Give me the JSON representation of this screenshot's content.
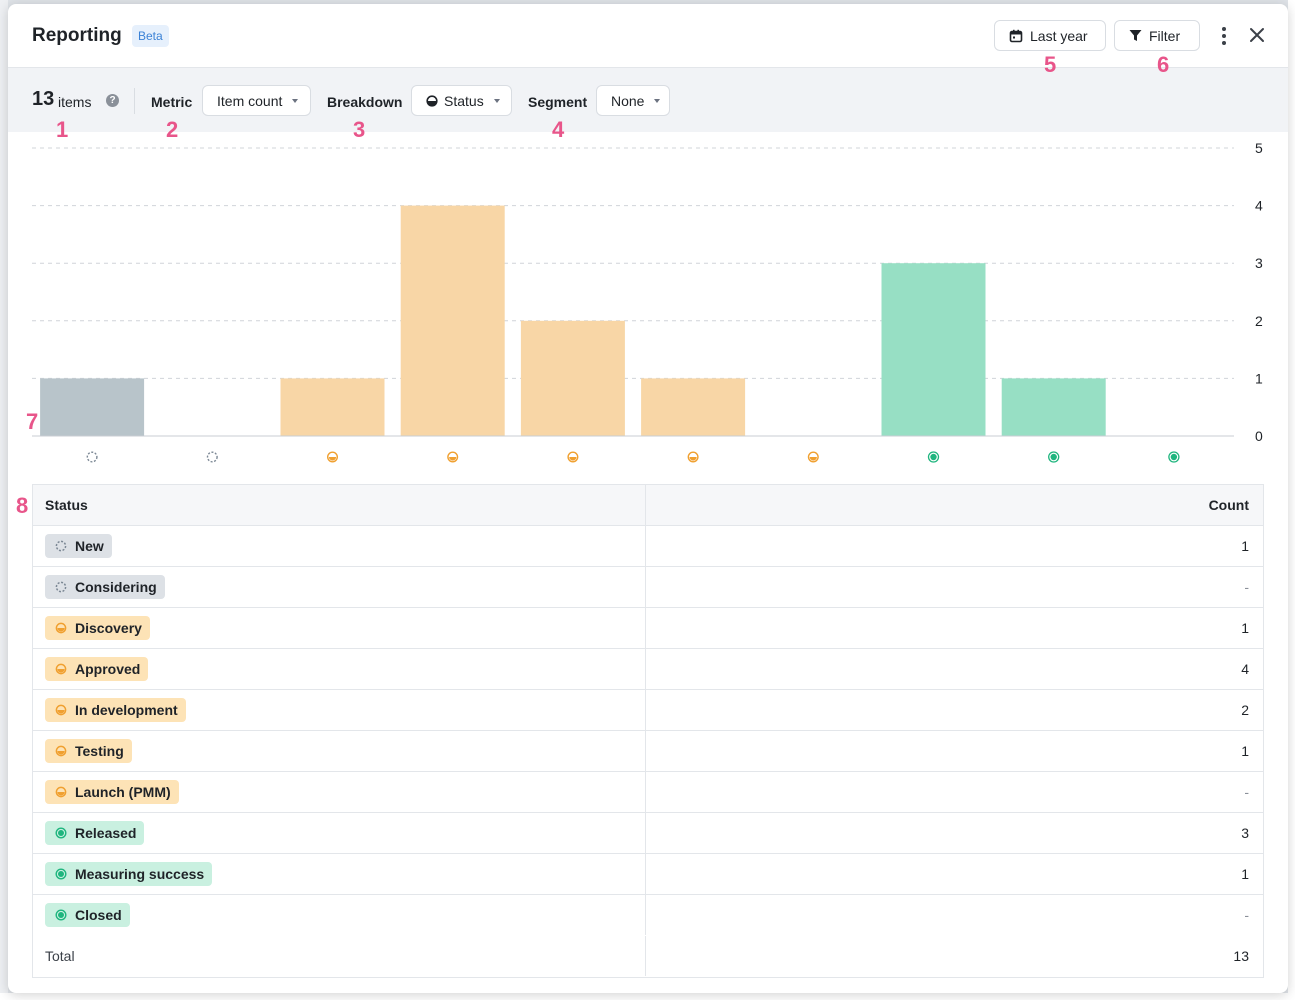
{
  "header": {
    "title": "Reporting",
    "badge": "Beta",
    "date_button": "Last year",
    "filter_button": "Filter"
  },
  "toolbar": {
    "item_count": "13",
    "item_label": "items",
    "metric_label": "Metric",
    "metric_value": "Item count",
    "breakdown_label": "Breakdown",
    "breakdown_value": "Status",
    "segment_label": "Segment",
    "segment_value": "None"
  },
  "annotations": [
    "1",
    "2",
    "3",
    "4",
    "5",
    "6",
    "7",
    "8"
  ],
  "colors": {
    "gray": "#b8c4ca",
    "orange": "#f8d6a6",
    "green": "#97dfc4",
    "icon_gray": "#7b8794",
    "icon_orange": "#f0a030",
    "icon_green": "#1fb57e"
  },
  "chart_data": {
    "type": "bar",
    "categories": [
      "New",
      "Considering",
      "Discovery",
      "Approved",
      "In development",
      "Testing",
      "Launch (PMM)",
      "Released",
      "Measuring success",
      "Closed"
    ],
    "values": [
      1,
      0,
      1,
      4,
      2,
      1,
      0,
      3,
      1,
      0
    ],
    "groups": [
      "gray",
      "gray",
      "orange",
      "orange",
      "orange",
      "orange",
      "orange",
      "green",
      "green",
      "green"
    ],
    "y_ticks": [
      "0",
      "1",
      "2",
      "3",
      "4",
      "5"
    ],
    "ylim": [
      0,
      5
    ],
    "grid": true,
    "y_axis_side": "right"
  },
  "table": {
    "header_status": "Status",
    "header_count": "Count",
    "rows": [
      {
        "status": "New",
        "count": "1",
        "group": "gray"
      },
      {
        "status": "Considering",
        "count": "-",
        "group": "gray"
      },
      {
        "status": "Discovery",
        "count": "1",
        "group": "orange"
      },
      {
        "status": "Approved",
        "count": "4",
        "group": "orange"
      },
      {
        "status": "In development",
        "count": "2",
        "group": "orange"
      },
      {
        "status": "Testing",
        "count": "1",
        "group": "orange"
      },
      {
        "status": "Launch (PMM)",
        "count": "-",
        "group": "orange"
      },
      {
        "status": "Released",
        "count": "3",
        "group": "green"
      },
      {
        "status": "Measuring success",
        "count": "1",
        "group": "green"
      },
      {
        "status": "Closed",
        "count": "-",
        "group": "green"
      }
    ],
    "total_label": "Total",
    "total_value": "13"
  }
}
